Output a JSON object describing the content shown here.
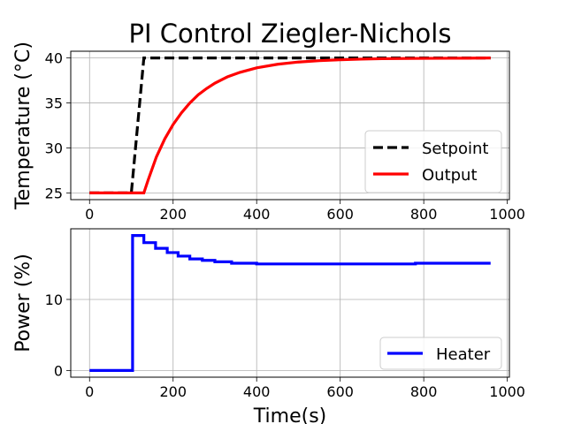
{
  "chart_data": [
    {
      "type": "line",
      "title": "PI Control Ziegler-Nichols",
      "xlabel": "",
      "ylabel": "Temperature (°C)",
      "xlim": [
        -45,
        1005
      ],
      "ylim": [
        24.25,
        40.75
      ],
      "xticks": [
        0,
        200,
        400,
        600,
        800,
        1000
      ],
      "xtick_labels": [
        "0",
        "200",
        "400",
        "600",
        "800",
        "1000"
      ],
      "yticks": [
        25,
        30,
        35,
        40
      ],
      "ytick_labels": [
        "25",
        "30",
        "35",
        "40"
      ],
      "grid": true,
      "legend": "lower-right",
      "series": [
        {
          "name": "Setpoint",
          "color": "#000000",
          "style": "dashed",
          "x": [
            0,
            100,
            130,
            960
          ],
          "y": [
            25,
            25,
            40,
            40
          ]
        },
        {
          "name": "Output",
          "color": "#ff0000",
          "style": "solid",
          "x": [
            0,
            130,
            140,
            160,
            180,
            200,
            220,
            240,
            260,
            280,
            300,
            330,
            360,
            400,
            450,
            500,
            550,
            600,
            650,
            700,
            800,
            900,
            960
          ],
          "y": [
            25,
            25,
            26.4,
            29.0,
            31.0,
            32.6,
            33.9,
            35.0,
            35.9,
            36.6,
            37.2,
            37.9,
            38.4,
            38.9,
            39.3,
            39.55,
            39.7,
            39.8,
            39.87,
            39.92,
            39.96,
            39.98,
            40.0
          ]
        }
      ]
    },
    {
      "type": "line",
      "title": "",
      "xlabel": "Time(s)",
      "ylabel": "Power (%)",
      "xlim": [
        -45,
        1005
      ],
      "ylim": [
        -0.95,
        19.95
      ],
      "xticks": [
        0,
        200,
        400,
        600,
        800,
        1000
      ],
      "xtick_labels": [
        "0",
        "200",
        "400",
        "600",
        "800",
        "1000"
      ],
      "yticks": [
        0,
        10
      ],
      "ytick_labels": [
        "0",
        "10"
      ],
      "grid": true,
      "legend": "lower-right",
      "series": [
        {
          "name": "Heater",
          "color": "#0000ff",
          "style": "steps",
          "x": [
            0,
            103,
            103,
            130,
            130,
            158,
            158,
            186,
            186,
            212,
            212,
            240,
            240,
            270,
            270,
            300,
            300,
            340,
            340,
            400,
            400,
            780,
            780,
            960
          ],
          "y": [
            0,
            0,
            19.0,
            19.0,
            18.0,
            18.0,
            17.2,
            17.2,
            16.6,
            16.6,
            16.1,
            16.1,
            15.7,
            15.7,
            15.5,
            15.5,
            15.3,
            15.3,
            15.1,
            15.1,
            15.0,
            15.0,
            15.1,
            15.1
          ]
        }
      ]
    }
  ]
}
